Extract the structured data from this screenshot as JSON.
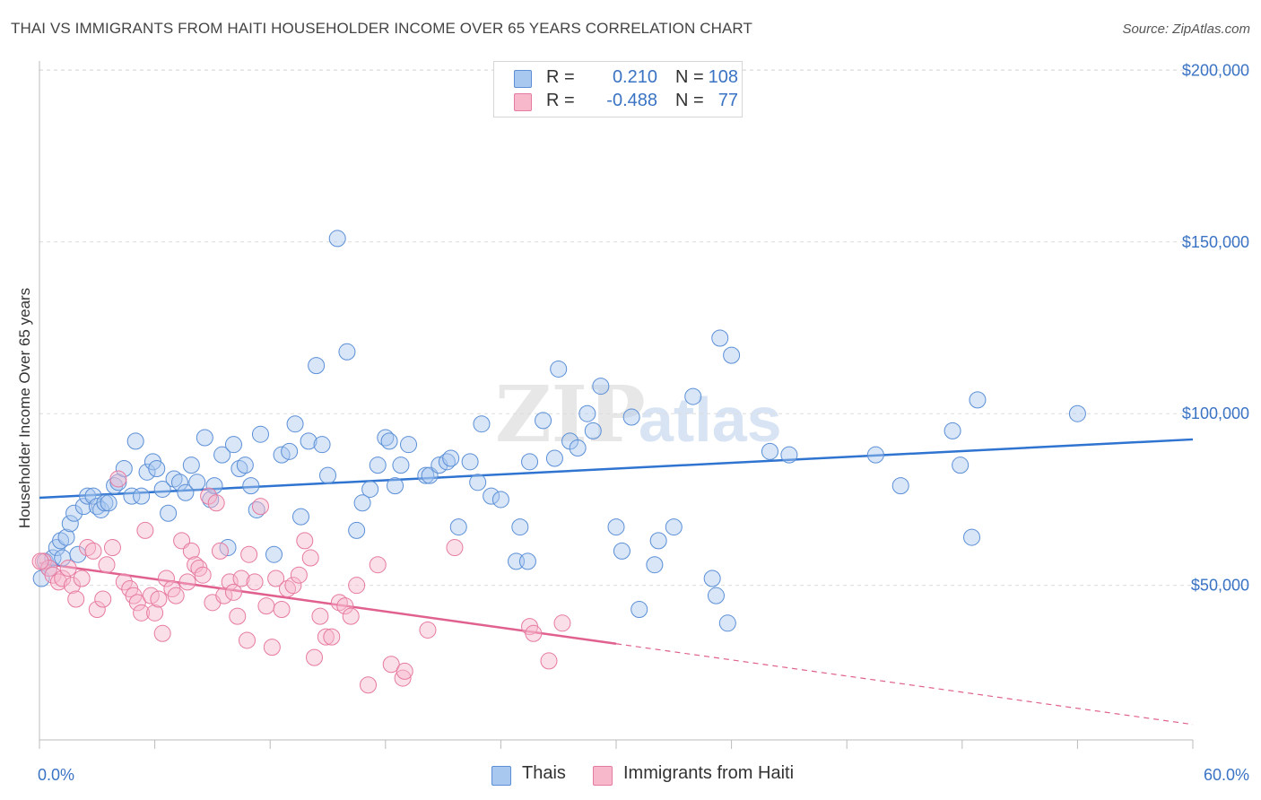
{
  "title": "THAI VS IMMIGRANTS FROM HAITI HOUSEHOLDER INCOME OVER 65 YEARS CORRELATION CHART",
  "source": "Source: ZipAtlas.com",
  "watermark": {
    "zip": "ZIP",
    "atlas": "atlas"
  },
  "legend": {
    "rows": [
      {
        "r_label": "R =",
        "r_value": "0.210",
        "n_label": "N =",
        "n_value": "108",
        "color": "#a8c8f0",
        "border": "#5b8fd6"
      },
      {
        "r_label": "R =",
        "r_value": "-0.488",
        "n_label": "N =",
        "n_value": "77",
        "color": "#f7b8cc",
        "border": "#e67aa0"
      }
    ]
  },
  "bottom_legend": [
    {
      "label": "Thais",
      "color": "#a8c8f0",
      "border": "#5b8fd6"
    },
    {
      "label": "Immigrants from Haiti",
      "color": "#f7b8cc",
      "border": "#e67aa0"
    }
  ],
  "chart_data": {
    "type": "scatter",
    "title": "THAI VS IMMIGRANTS FROM HAITI HOUSEHOLDER INCOME OVER 65 YEARS CORRELATION CHART",
    "xlabel": "",
    "ylabel": "Householder Income Over 65 years",
    "xlim": [
      0,
      60
    ],
    "ylim": [
      5000,
      210000
    ],
    "x_tick_labels": [
      "0.0%",
      "60.0%"
    ],
    "y_ticks": [
      {
        "value": 50000,
        "label": "$50,000"
      },
      {
        "value": 100000,
        "label": "$100,000"
      },
      {
        "value": 150000,
        "label": "$150,000"
      },
      {
        "value": 200000,
        "label": "$200,000"
      }
    ],
    "grid": true,
    "series": [
      {
        "name": "Thais",
        "color": "#5b8fd6",
        "fill": "rgba(168,200,240,0.45)",
        "trend": {
          "x": [
            0,
            60
          ],
          "y": [
            75500,
            92500
          ],
          "color": "#2f74d0"
        },
        "points": [
          [
            0.1,
            52000
          ],
          [
            0.3,
            57000
          ],
          [
            0.5,
            55000
          ],
          [
            0.7,
            58000
          ],
          [
            0.9,
            61000
          ],
          [
            1.1,
            63000
          ],
          [
            1.2,
            58000
          ],
          [
            1.4,
            64000
          ],
          [
            1.6,
            68000
          ],
          [
            1.8,
            71000
          ],
          [
            2.0,
            59000
          ],
          [
            2.3,
            73000
          ],
          [
            2.5,
            76000
          ],
          [
            2.8,
            76000
          ],
          [
            3.0,
            73000
          ],
          [
            3.2,
            72000
          ],
          [
            3.4,
            74000
          ],
          [
            3.6,
            74000
          ],
          [
            3.9,
            79000
          ],
          [
            4.1,
            80000
          ],
          [
            4.4,
            84000
          ],
          [
            4.8,
            76000
          ],
          [
            5.0,
            92000
          ],
          [
            5.3,
            76000
          ],
          [
            5.6,
            83000
          ],
          [
            5.9,
            86000
          ],
          [
            6.1,
            84000
          ],
          [
            6.4,
            78000
          ],
          [
            6.7,
            71000
          ],
          [
            7.0,
            81000
          ],
          [
            7.3,
            80000
          ],
          [
            7.6,
            77000
          ],
          [
            7.9,
            85000
          ],
          [
            8.2,
            80000
          ],
          [
            8.6,
            93000
          ],
          [
            8.9,
            75000
          ],
          [
            9.1,
            79000
          ],
          [
            9.5,
            88000
          ],
          [
            9.8,
            61000
          ],
          [
            10.1,
            91000
          ],
          [
            10.4,
            84000
          ],
          [
            10.7,
            85000
          ],
          [
            11.0,
            79000
          ],
          [
            11.3,
            72000
          ],
          [
            11.5,
            94000
          ],
          [
            12.2,
            59000
          ],
          [
            12.6,
            88000
          ],
          [
            13.0,
            89000
          ],
          [
            13.3,
            97000
          ],
          [
            13.6,
            70000
          ],
          [
            14.0,
            92000
          ],
          [
            14.4,
            114000
          ],
          [
            14.7,
            91000
          ],
          [
            15.0,
            82000
          ],
          [
            15.5,
            151000
          ],
          [
            16.0,
            118000
          ],
          [
            16.5,
            66000
          ],
          [
            16.8,
            74000
          ],
          [
            17.2,
            78000
          ],
          [
            17.6,
            85000
          ],
          [
            18.0,
            93000
          ],
          [
            18.2,
            92000
          ],
          [
            18.5,
            79000
          ],
          [
            18.8,
            85000
          ],
          [
            19.2,
            91000
          ],
          [
            20.1,
            82000
          ],
          [
            20.3,
            82000
          ],
          [
            20.8,
            85000
          ],
          [
            21.2,
            86000
          ],
          [
            21.4,
            87000
          ],
          [
            21.8,
            67000
          ],
          [
            22.4,
            86000
          ],
          [
            22.8,
            80000
          ],
          [
            23.0,
            97000
          ],
          [
            23.5,
            76000
          ],
          [
            24.0,
            75000
          ],
          [
            24.8,
            57000
          ],
          [
            25.0,
            67000
          ],
          [
            25.4,
            57000
          ],
          [
            25.5,
            86000
          ],
          [
            26.2,
            98000
          ],
          [
            26.8,
            87000
          ],
          [
            27.0,
            113000
          ],
          [
            27.6,
            92000
          ],
          [
            28.0,
            90000
          ],
          [
            28.5,
            100000
          ],
          [
            28.8,
            95000
          ],
          [
            29.2,
            108000
          ],
          [
            30.0,
            67000
          ],
          [
            30.3,
            60000
          ],
          [
            30.8,
            99000
          ],
          [
            31.2,
            43000
          ],
          [
            32.0,
            56000
          ],
          [
            32.2,
            63000
          ],
          [
            33.0,
            67000
          ],
          [
            34.0,
            105000
          ],
          [
            35.0,
            52000
          ],
          [
            35.2,
            47000
          ],
          [
            35.4,
            122000
          ],
          [
            35.8,
            39000
          ],
          [
            36.0,
            117000
          ],
          [
            38.0,
            89000
          ],
          [
            39.0,
            88000
          ],
          [
            43.5,
            88000
          ],
          [
            44.8,
            79000
          ],
          [
            47.5,
            95000
          ],
          [
            47.9,
            85000
          ],
          [
            48.5,
            64000
          ],
          [
            48.8,
            104000
          ],
          [
            54.0,
            100000
          ]
        ]
      },
      {
        "name": "Immigrants from Haiti",
        "color": "#e67aa0",
        "fill": "rgba(247,184,204,0.45)",
        "trend": {
          "x": [
            0,
            30
          ],
          "y": [
            56500,
            33000
          ],
          "color": "#e0608e"
        },
        "trend_extension": {
          "x": [
            30,
            60
          ],
          "y": [
            33000,
            9500
          ]
        },
        "points": [
          [
            0.2,
            57000
          ],
          [
            0.5,
            55000
          ],
          [
            0.7,
            53000
          ],
          [
            1.0,
            51000
          ],
          [
            1.2,
            52000
          ],
          [
            1.5,
            55000
          ],
          [
            1.7,
            50000
          ],
          [
            1.9,
            46000
          ],
          [
            2.2,
            52000
          ],
          [
            2.5,
            61000
          ],
          [
            2.8,
            60000
          ],
          [
            3.0,
            43000
          ],
          [
            3.3,
            46000
          ],
          [
            3.5,
            56000
          ],
          [
            3.8,
            61000
          ],
          [
            4.1,
            81000
          ],
          [
            4.4,
            51000
          ],
          [
            4.7,
            49000
          ],
          [
            4.9,
            47000
          ],
          [
            5.1,
            45000
          ],
          [
            5.3,
            42000
          ],
          [
            5.5,
            66000
          ],
          [
            5.8,
            47000
          ],
          [
            6.0,
            42000
          ],
          [
            6.2,
            46000
          ],
          [
            6.4,
            36000
          ],
          [
            6.6,
            52000
          ],
          [
            6.9,
            49000
          ],
          [
            7.1,
            47000
          ],
          [
            7.4,
            63000
          ],
          [
            7.7,
            51000
          ],
          [
            7.9,
            60000
          ],
          [
            8.1,
            56000
          ],
          [
            8.3,
            55000
          ],
          [
            8.5,
            53000
          ],
          [
            8.8,
            76000
          ],
          [
            9.0,
            45000
          ],
          [
            9.2,
            74000
          ],
          [
            9.4,
            60000
          ],
          [
            9.6,
            47000
          ],
          [
            9.9,
            51000
          ],
          [
            10.1,
            48000
          ],
          [
            10.3,
            41000
          ],
          [
            10.5,
            52000
          ],
          [
            10.8,
            34000
          ],
          [
            10.9,
            59000
          ],
          [
            11.2,
            51000
          ],
          [
            11.5,
            73000
          ],
          [
            11.8,
            44000
          ],
          [
            12.1,
            32000
          ],
          [
            12.3,
            52000
          ],
          [
            12.6,
            43000
          ],
          [
            12.9,
            49000
          ],
          [
            13.2,
            50000
          ],
          [
            13.5,
            53000
          ],
          [
            13.8,
            63000
          ],
          [
            14.1,
            58000
          ],
          [
            14.3,
            29000
          ],
          [
            14.6,
            41000
          ],
          [
            14.9,
            35000
          ],
          [
            15.2,
            35000
          ],
          [
            15.6,
            45000
          ],
          [
            15.9,
            44000
          ],
          [
            16.2,
            41000
          ],
          [
            16.5,
            50000
          ],
          [
            17.1,
            21000
          ],
          [
            17.6,
            56000
          ],
          [
            18.3,
            27000
          ],
          [
            18.9,
            23000
          ],
          [
            19.0,
            25000
          ],
          [
            20.2,
            37000
          ],
          [
            21.6,
            61000
          ],
          [
            25.5,
            38000
          ],
          [
            25.7,
            36000
          ],
          [
            26.5,
            28000
          ],
          [
            27.2,
            39000
          ],
          [
            0.05,
            57000
          ]
        ]
      }
    ]
  }
}
